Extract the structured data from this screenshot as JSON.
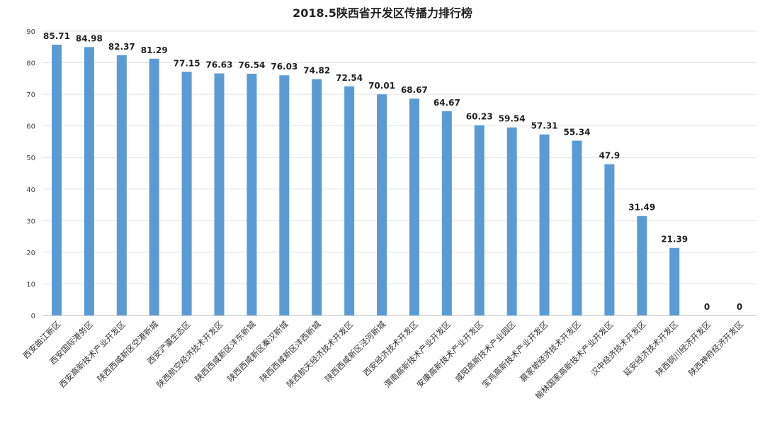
{
  "chart_data": {
    "type": "bar",
    "title": "2018.5陕西省开发区传播力排行榜",
    "xlabel": "",
    "ylabel": "",
    "ylim": [
      0,
      90
    ],
    "yticks": [
      0,
      10,
      20,
      30,
      40,
      50,
      60,
      70,
      80,
      90
    ],
    "grid": true,
    "legend": "none",
    "bar_color": "#5B9BD5",
    "categories": [
      "西安曲江新区",
      "西安国际港务区",
      "西安高新技术产业开发区",
      "陕西西咸新区空港新城",
      "西安浐灞生态区",
      "陕西航空经济技术开发区",
      "陕西西咸新区沣东新城",
      "陕西西咸新区秦汉新城",
      "陕西西咸新区沣西新城",
      "陕西航天经济技术开发区",
      "陕西西咸新区泾河新城",
      "西安经济技术开发区",
      "渭南高新技术产业开发区",
      "安康高新技术产业开发区",
      "咸阳高新技术产业园区",
      "宝鸡高新技术产业开发区",
      "蔡家坡经济技术开发区",
      "榆林国家高新技术产业开发区",
      "汉中经济技术开发区",
      "延安经济技术开发区",
      "陕西铜川经济开发区",
      "陕西神府经济开发区"
    ],
    "values": [
      85.71,
      84.98,
      82.37,
      81.29,
      77.15,
      76.63,
      76.54,
      76.03,
      74.82,
      72.54,
      70.01,
      68.67,
      64.67,
      60.23,
      59.54,
      57.31,
      55.34,
      47.9,
      31.49,
      21.39,
      0,
      0
    ],
    "data_labels": [
      "85.71",
      "84.98",
      "82.37",
      "81.29",
      "77.15",
      "76.63",
      "76.54",
      "76.03",
      "74.82",
      "72.54",
      "70.01",
      "68.67",
      "64.67",
      "60.23",
      "59.54",
      "57.31",
      "55.34",
      "47.9",
      "31.49",
      "21.39",
      "0",
      "0"
    ]
  }
}
